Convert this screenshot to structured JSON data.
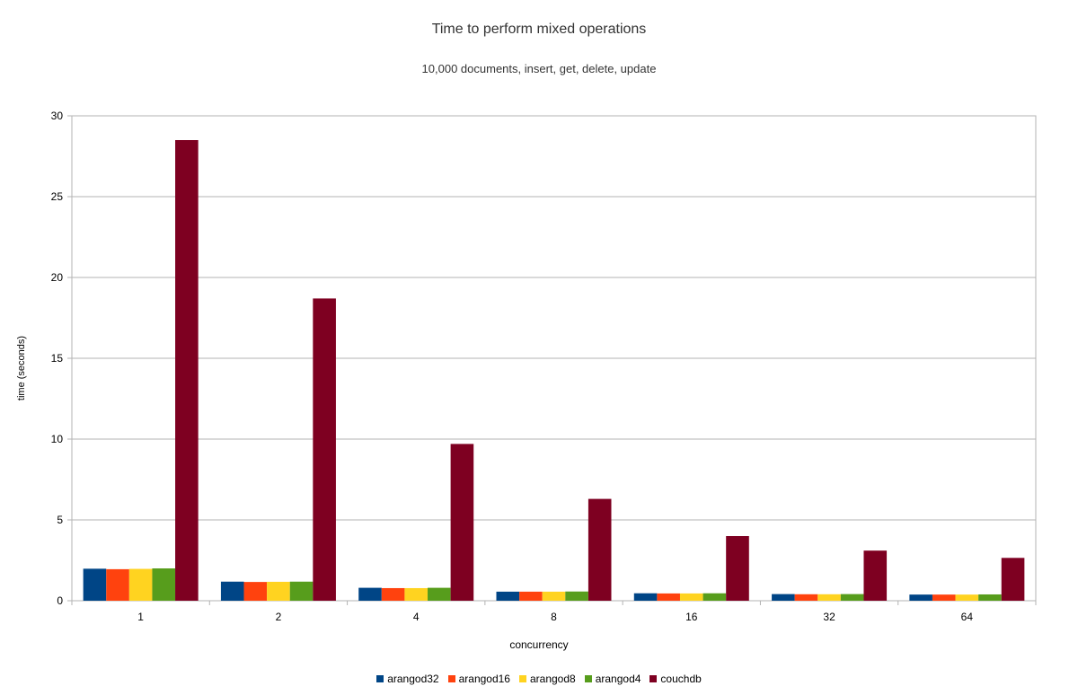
{
  "chart_data": {
    "type": "bar",
    "title": "Time to perform mixed operations",
    "subtitle": "10,000 documents, insert, get, delete, update",
    "xlabel": "concurrency",
    "ylabel": "time (seconds)",
    "ylim": [
      0,
      30
    ],
    "yticks": [
      "0",
      "5",
      "10",
      "15",
      "20",
      "25",
      "30"
    ],
    "grid": true,
    "legend_position": "bottom",
    "categories": [
      "1",
      "2",
      "4",
      "8",
      "16",
      "32",
      "64"
    ],
    "series": [
      {
        "name": "arangod32",
        "color": "#004586",
        "values": [
          1.98,
          1.18,
          0.8,
          0.56,
          0.46,
          0.41,
          0.38
        ]
      },
      {
        "name": "arangod16",
        "color": "#ff420e",
        "values": [
          1.95,
          1.16,
          0.78,
          0.56,
          0.45,
          0.4,
          0.38
        ]
      },
      {
        "name": "arangod8",
        "color": "#ffd320",
        "values": [
          1.97,
          1.17,
          0.78,
          0.56,
          0.45,
          0.4,
          0.38
        ]
      },
      {
        "name": "arangod4",
        "color": "#579d1c",
        "values": [
          2.0,
          1.18,
          0.8,
          0.57,
          0.46,
          0.41,
          0.39
        ]
      },
      {
        "name": "couchdb",
        "color": "#7e0021",
        "values": [
          28.5,
          18.7,
          9.7,
          6.3,
          4.0,
          3.1,
          2.65
        ]
      }
    ]
  }
}
